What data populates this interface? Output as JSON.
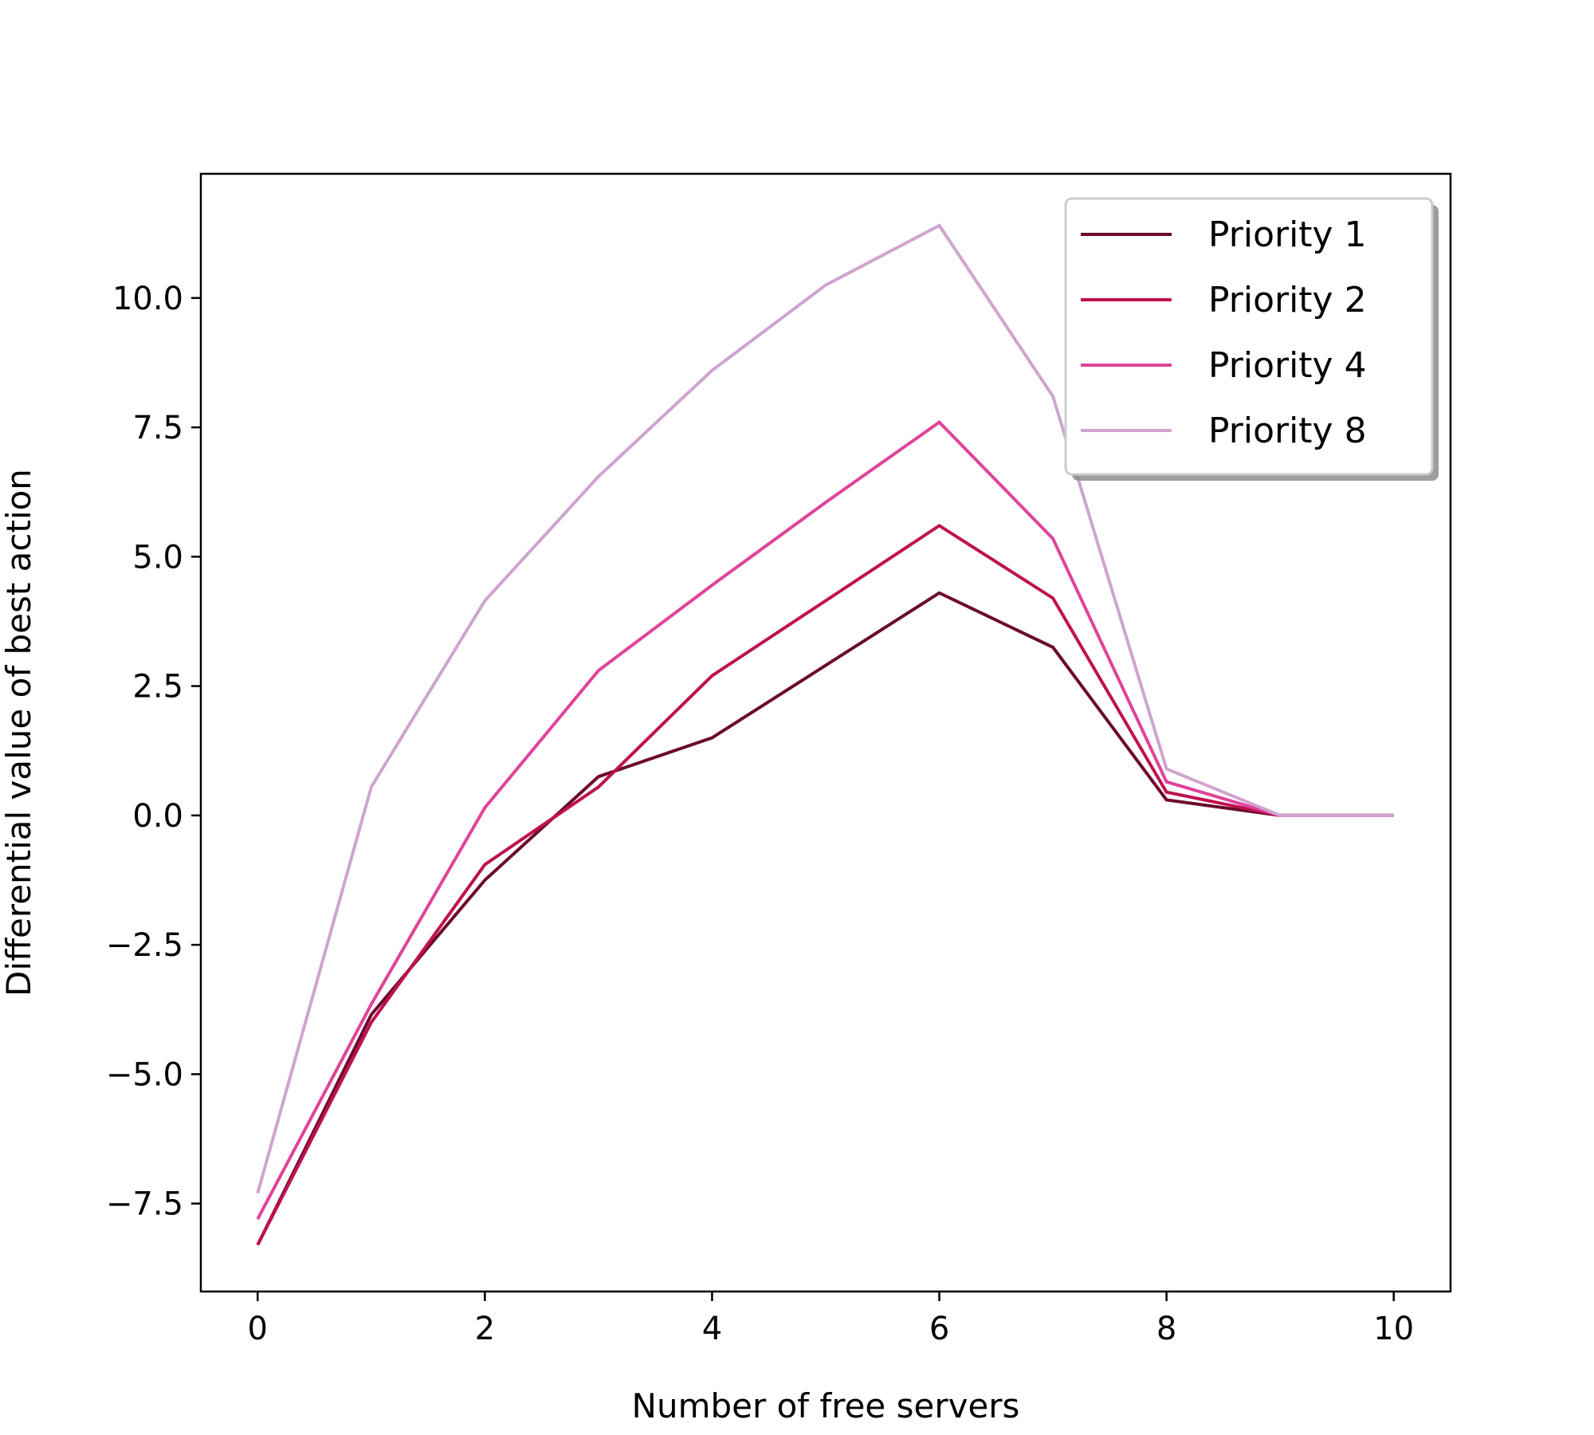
{
  "chart_data": {
    "type": "line",
    "title": "",
    "xlabel": "Number of free servers",
    "ylabel": "Differential value of best action",
    "xlim": [
      -0.5,
      10.5
    ],
    "ylim": [
      -9.2,
      12.4
    ],
    "xticks": [
      0,
      2,
      4,
      6,
      8,
      10
    ],
    "xtick_labels": [
      "0",
      "2",
      "4",
      "6",
      "8",
      "10"
    ],
    "yticks": [
      -7.5,
      -5.0,
      -2.5,
      0.0,
      2.5,
      5.0,
      7.5,
      10.0
    ],
    "ytick_labels": [
      "−7.5",
      "−5.0",
      "−2.5",
      "0.0",
      "2.5",
      "5.0",
      "7.5",
      "10.0"
    ],
    "grid": false,
    "legend_position": "top-right",
    "x": [
      0,
      1,
      2,
      3,
      4,
      5,
      6,
      7,
      8,
      9,
      10
    ],
    "series": [
      {
        "name": "Priority 1",
        "color": "#6b0a2e",
        "values": [
          -8.3,
          -3.85,
          -1.25,
          0.75,
          1.5,
          2.9,
          4.3,
          3.25,
          0.3,
          0.0,
          0.0
        ]
      },
      {
        "name": "Priority 2",
        "color": "#c0104f",
        "values": [
          -8.3,
          -4.0,
          -0.95,
          0.55,
          2.7,
          4.15,
          5.6,
          4.2,
          0.45,
          0.0,
          0.0
        ]
      },
      {
        "name": "Priority 4",
        "color": "#e0439a",
        "values": [
          -7.8,
          -3.65,
          0.15,
          2.8,
          4.45,
          6.05,
          7.6,
          5.35,
          0.65,
          0.0,
          0.0
        ]
      },
      {
        "name": "Priority 8",
        "color": "#cfa4cf",
        "values": [
          -7.3,
          0.55,
          4.15,
          6.55,
          8.6,
          10.25,
          11.4,
          8.1,
          0.9,
          0.0,
          0.0
        ]
      }
    ]
  }
}
